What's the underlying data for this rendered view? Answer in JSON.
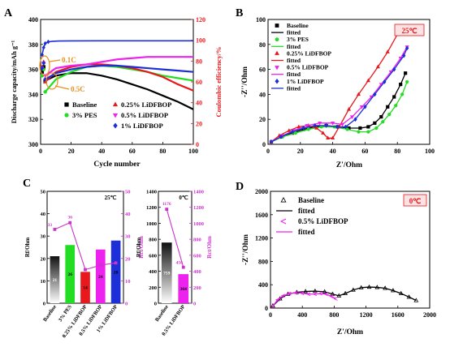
{
  "colors": {
    "baseline": "#000000",
    "pes": "#22dd22",
    "lidfbop025": "#e8181c",
    "lidfbop05": "#ee22ee",
    "lidfbop1": "#1c2fd8",
    "ce_axis": "#e8181c",
    "annot": "#e8901c",
    "temp_bg": "#fbe3e3",
    "c_left_axis": "#000000",
    "c_right_axis": "#cc33cc",
    "bar_base_top": "#111111",
    "bar_base_bot": "#ffffff"
  },
  "chart_data": [
    {
      "panel": "A",
      "type": "line",
      "xlabel": "Cycle number",
      "ylabel": "Discharge capacity/mAh g⁻¹",
      "y2label": "Coulombic efficiency/%",
      "xlim": [
        0,
        100
      ],
      "ylim": [
        300,
        400
      ],
      "y2lim": [
        0,
        120
      ],
      "xticks": [
        "0",
        "20",
        "40",
        "60",
        "80",
        "100"
      ],
      "yticks": [
        "300",
        "320",
        "340",
        "360",
        "380",
        "400"
      ],
      "y2ticks": [
        "0",
        "20",
        "40",
        "60",
        "80",
        "100",
        "120"
      ],
      "annotations": [
        "0.1C",
        "0.5C"
      ],
      "legend": [
        "Baseline",
        "3% PES",
        "0.25% LiDFBOP",
        "0.5% LiDFBOP",
        "1% LiDFBOP"
      ],
      "series": [
        {
          "name": "Baseline",
          "x": [
            3,
            10,
            20,
            30,
            40,
            50,
            60,
            70,
            80,
            90,
            100
          ],
          "values": [
            351,
            355,
            357,
            357,
            355,
            352,
            348,
            344,
            339,
            334,
            328
          ]
        },
        {
          "name": "3% PES",
          "x": [
            3,
            10,
            20,
            30,
            40,
            50,
            60,
            70,
            80,
            90,
            100
          ],
          "values": [
            342,
            352,
            358,
            362,
            363,
            362,
            360,
            358,
            355,
            353,
            351
          ]
        },
        {
          "name": "0.25% LiDFBOP",
          "x": [
            3,
            10,
            20,
            30,
            40,
            50,
            60,
            70,
            80,
            90,
            100
          ],
          "values": [
            350,
            358,
            362,
            364,
            364,
            363,
            361,
            358,
            354,
            348,
            343
          ]
        },
        {
          "name": "0.5% LiDFBOP",
          "x": [
            3,
            10,
            20,
            30,
            40,
            50,
            60,
            70,
            80,
            90,
            100
          ],
          "values": [
            355,
            361,
            363,
            364,
            366,
            368,
            369,
            370,
            370,
            370,
            370
          ]
        },
        {
          "name": "1% LiDFBOP",
          "x": [
            3,
            10,
            20,
            30,
            40,
            50,
            60,
            70,
            80,
            90,
            100
          ],
          "values": [
            352,
            357,
            360,
            362,
            363,
            363,
            362,
            361,
            360,
            359,
            358
          ]
        }
      ],
      "first_cycles": [
        {
          "name": "Baseline",
          "x": [
            1,
            2
          ],
          "values": [
            358,
            362
          ]
        },
        {
          "name": "3% PES",
          "x": [
            1,
            2
          ],
          "values": [
            355,
            360
          ]
        },
        {
          "name": "0.25% LiDFBOP",
          "x": [
            1,
            2
          ],
          "values": [
            362,
            366
          ]
        },
        {
          "name": "0.5% LiDFBOP",
          "x": [
            1,
            2
          ],
          "values": [
            361,
            365
          ]
        },
        {
          "name": "1% LiDFBOP",
          "x": [
            1,
            2
          ],
          "values": [
            361,
            365
          ]
        }
      ],
      "ce": {
        "x": [
          1,
          2,
          3,
          5,
          8,
          12,
          20,
          40,
          60,
          80,
          100
        ],
        "values": [
          86,
          93,
          97,
          98.5,
          99,
          99.3,
          99.4,
          99.5,
          99.5,
          99.5,
          99.5
        ]
      }
    },
    {
      "panel": "B",
      "type": "scatter",
      "xlabel": "Z'/Ohm",
      "ylabel": "-Z''/Ohm",
      "xlim": [
        0,
        100
      ],
      "ylim": [
        0,
        100
      ],
      "xticks": [
        "0",
        "20",
        "40",
        "60",
        "80",
        "100"
      ],
      "yticks": [
        "0",
        "20",
        "40",
        "60",
        "80",
        "100"
      ],
      "temperature": "25℃",
      "legend": [
        "Baseline",
        "fitted",
        "3% PES",
        "fitted",
        "0.25% LiDFBOP",
        "fitted",
        "0.5% LiDFBOP",
        "fitted",
        "1% LiDFBOP",
        "fitted"
      ],
      "series": [
        {
          "name": "Baseline",
          "x": [
            2,
            8,
            15,
            22,
            29,
            36,
            43,
            50,
            57,
            62,
            66,
            70,
            74,
            78,
            82,
            85
          ],
          "values": [
            2,
            6,
            9,
            12,
            14,
            15,
            14,
            13,
            13,
            14,
            17,
            22,
            30,
            38,
            48,
            57
          ]
        },
        {
          "name": "3% PES",
          "x": [
            2,
            9,
            17,
            25,
            33,
            41,
            49,
            56,
            62,
            67,
            71,
            75,
            79,
            83,
            86
          ],
          "values": [
            2,
            6,
            9,
            12,
            14,
            14,
            12,
            10,
            10,
            13,
            18,
            24,
            31,
            40,
            50
          ]
        },
        {
          "name": "0.25% LiDFBOP",
          "x": [
            2,
            7,
            13,
            19,
            25,
            30,
            34,
            37,
            40,
            44,
            50,
            56,
            62,
            68,
            74,
            80
          ],
          "values": [
            2,
            7,
            11,
            14,
            15,
            13,
            9,
            5,
            5,
            14,
            28,
            40,
            51,
            62,
            74,
            88
          ]
        },
        {
          "name": "0.5% LiDFBOP",
          "x": [
            2,
            9,
            16,
            24,
            32,
            40,
            46,
            52,
            58,
            64,
            70,
            76,
            82,
            86
          ],
          "values": [
            2,
            7,
            11,
            15,
            17,
            17,
            16,
            22,
            30,
            38,
            48,
            58,
            69,
            78
          ]
        },
        {
          "name": "1% LiDFBOP",
          "x": [
            2,
            8,
            15,
            22,
            29,
            36,
            43,
            48,
            54,
            60,
            66,
            72,
            78,
            84,
            86
          ],
          "values": [
            2,
            6,
            10,
            13,
            15,
            15,
            14,
            14,
            20,
            30,
            40,
            50,
            60,
            71,
            77
          ]
        }
      ]
    },
    {
      "panel": "C",
      "type": "bar",
      "temperature_left": "25℃",
      "temperature_right": "0℃",
      "left": {
        "categories": [
          "Baseline",
          "3% PES",
          "0.25% LiDFBOP",
          "0.5% LiDFBOP",
          "1% LiDFBOP"
        ],
        "values": [
          21,
          26,
          14,
          24,
          28
        ],
        "bar_labels": [
          "21",
          "26",
          "14",
          "24",
          "28"
        ],
        "ylabel": "Rf/Ohm",
        "ylim": [
          0,
          50
        ],
        "yticks": [
          "0",
          "10",
          "20",
          "30",
          "40",
          "50"
        ],
        "y2label": "Rct/Ohm",
        "y2lim": [
          0,
          50
        ],
        "y2ticks": [
          "0",
          "10",
          "20",
          "30",
          "40",
          "50"
        ],
        "rct_values": [
          33,
          36,
          15,
          17,
          18
        ],
        "rct_labels": [
          "33",
          "36",
          "",
          "",
          ""
        ]
      },
      "right": {
        "categories": [
          "Baseline",
          "0.5% LiDFBOP"
        ],
        "values": [
          759,
          364
        ],
        "bar_labels": [
          "759",
          "364"
        ],
        "ylabel": "Rf/Ohm",
        "ylim": [
          0,
          1400
        ],
        "yticks": [
          "0",
          "200",
          "400",
          "600",
          "800",
          "1000",
          "1200",
          "1400"
        ],
        "y2label": "Rct/Ohm",
        "y2lim": [
          0,
          1400
        ],
        "y2ticks": [
          "0",
          "200",
          "400",
          "600",
          "800",
          "1000",
          "1200",
          "1400"
        ],
        "rct_values": [
          1176,
          450
        ],
        "rct_labels": [
          "1176",
          "450"
        ]
      }
    },
    {
      "panel": "D",
      "type": "scatter",
      "xlabel": "Z'/Ohm",
      "ylabel": "-Z''/Ohm",
      "xlim": [
        0,
        2000
      ],
      "ylim": [
        0,
        2000
      ],
      "xticks": [
        "0",
        "400",
        "800",
        "1200",
        "1600",
        "2000"
      ],
      "yticks": [
        "0",
        "400",
        "800",
        "1200",
        "1600",
        "2000"
      ],
      "temperature": "0℃",
      "legend": [
        "Baseline",
        "fitted",
        "0.5% LiDFBOP",
        "fitted"
      ],
      "series": [
        {
          "name": "Baseline",
          "x": [
            30,
            120,
            220,
            330,
            440,
            560,
            680,
            780,
            860,
            940,
            1040,
            1140,
            1240,
            1340,
            1440,
            1540,
            1640,
            1740,
            1830
          ],
          "values": [
            40,
            160,
            240,
            270,
            285,
            290,
            280,
            240,
            210,
            250,
            310,
            350,
            360,
            355,
            340,
            300,
            250,
            190,
            130
          ]
        },
        {
          "name": "0.5% LiDFBOP",
          "x": [
            30,
            90,
            160,
            240,
            320,
            400,
            480,
            560,
            630,
            700,
            770,
            820
          ],
          "values": [
            40,
            140,
            210,
            250,
            260,
            255,
            240,
            240,
            250,
            240,
            200,
            160
          ]
        }
      ]
    }
  ],
  "panel_labels": {
    "A": "A",
    "B": "B",
    "C": "C",
    "D": "D"
  }
}
